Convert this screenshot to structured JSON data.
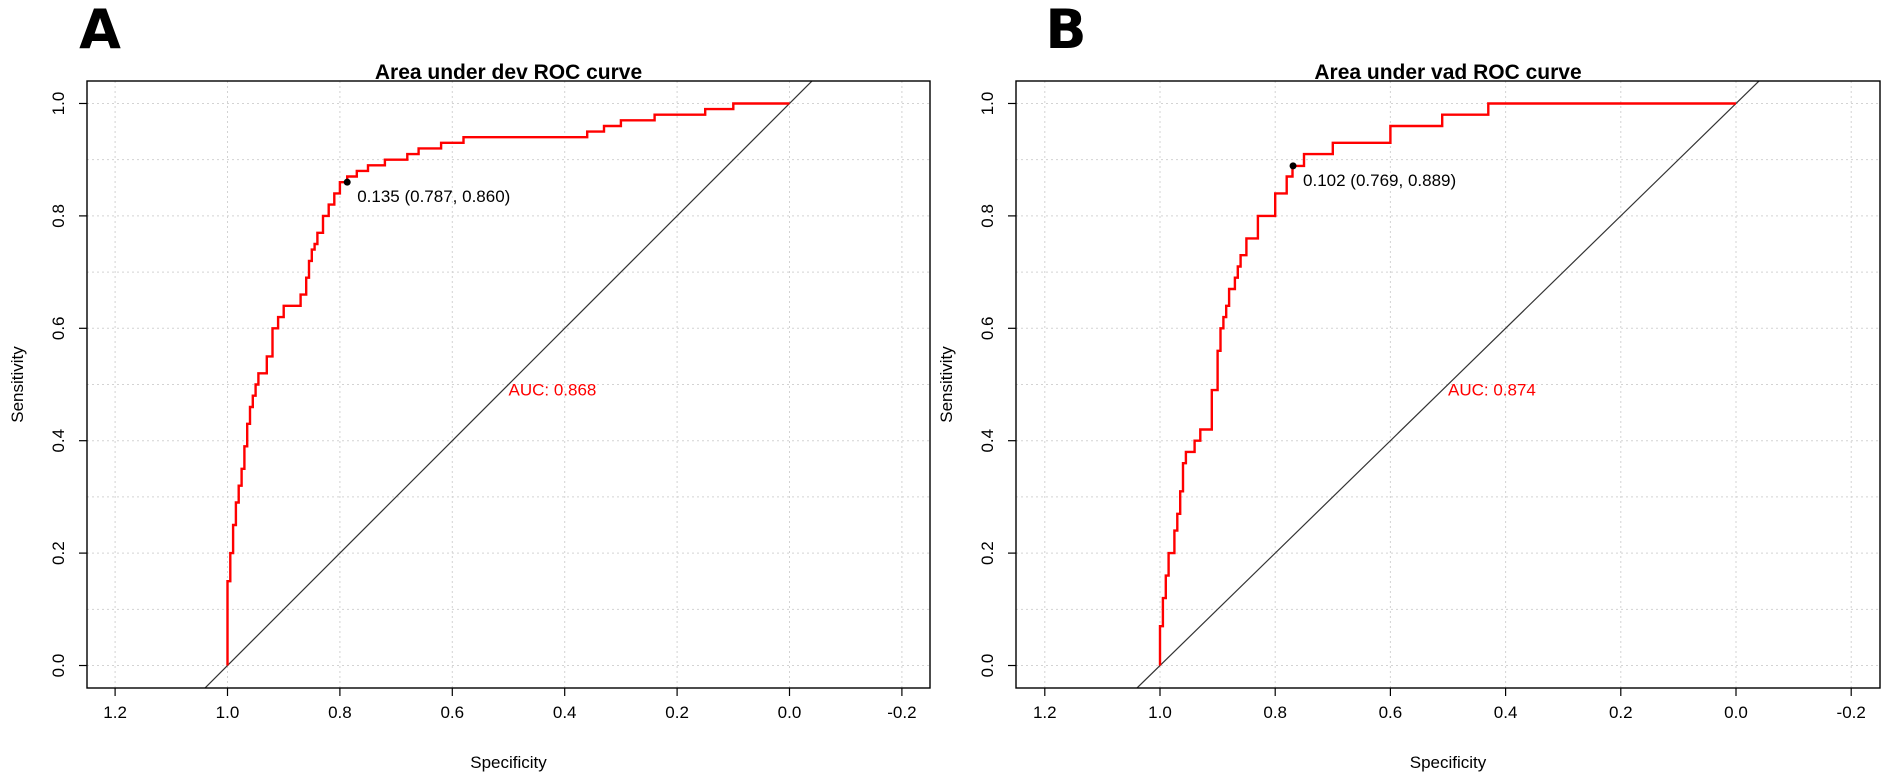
{
  "chart_data": [
    {
      "panel_label": "A",
      "type": "line",
      "title": "Area under dev ROC curve",
      "xlabel": "Specificity",
      "ylabel": "Sensitivity",
      "xlim": [
        1.25,
        -0.25
      ],
      "ylim": [
        -0.04,
        1.04
      ],
      "x_ticks": [
        "1.2",
        "1.0",
        "0.8",
        "0.6",
        "0.4",
        "0.2",
        "0.0",
        "-0.2"
      ],
      "y_ticks": [
        "0.0",
        "0.2",
        "0.4",
        "0.6",
        "0.8",
        "1.0"
      ],
      "grid": true,
      "series": [
        {
          "name": "ROC",
          "color": "#ff0000",
          "specificity": [
            1.0,
            1.0,
            0.995,
            0.995,
            0.99,
            0.99,
            0.985,
            0.985,
            0.98,
            0.98,
            0.975,
            0.975,
            0.97,
            0.97,
            0.965,
            0.965,
            0.96,
            0.96,
            0.955,
            0.955,
            0.95,
            0.95,
            0.945,
            0.945,
            0.94,
            0.94,
            0.93,
            0.93,
            0.92,
            0.92,
            0.91,
            0.91,
            0.9,
            0.9,
            0.89,
            0.89,
            0.87,
            0.87,
            0.86,
            0.86,
            0.855,
            0.855,
            0.85,
            0.85,
            0.845,
            0.845,
            0.84,
            0.84,
            0.83,
            0.83,
            0.82,
            0.82,
            0.81,
            0.81,
            0.8,
            0.8,
            0.787,
            0.787,
            0.77,
            0.77,
            0.75,
            0.75,
            0.72,
            0.72,
            0.68,
            0.68,
            0.66,
            0.66,
            0.62,
            0.62,
            0.58,
            0.58,
            0.5,
            0.5,
            0.36,
            0.36,
            0.33,
            0.33,
            0.3,
            0.3,
            0.24,
            0.24,
            0.15,
            0.15,
            0.1,
            0.1,
            0.0
          ],
          "sensitivity": [
            0.0,
            0.15,
            0.15,
            0.2,
            0.2,
            0.25,
            0.25,
            0.29,
            0.29,
            0.32,
            0.32,
            0.35,
            0.35,
            0.39,
            0.39,
            0.43,
            0.43,
            0.46,
            0.46,
            0.48,
            0.48,
            0.5,
            0.5,
            0.52,
            0.52,
            0.52,
            0.52,
            0.55,
            0.55,
            0.6,
            0.6,
            0.62,
            0.62,
            0.64,
            0.64,
            0.64,
            0.64,
            0.66,
            0.66,
            0.69,
            0.69,
            0.72,
            0.72,
            0.74,
            0.74,
            0.75,
            0.75,
            0.77,
            0.77,
            0.8,
            0.8,
            0.82,
            0.82,
            0.84,
            0.84,
            0.86,
            0.86,
            0.87,
            0.87,
            0.88,
            0.88,
            0.89,
            0.89,
            0.9,
            0.9,
            0.91,
            0.91,
            0.92,
            0.92,
            0.93,
            0.93,
            0.94,
            0.94,
            0.94,
            0.94,
            0.95,
            0.95,
            0.96,
            0.96,
            0.97,
            0.97,
            0.98,
            0.98,
            0.99,
            0.99,
            1.0,
            1.0
          ]
        }
      ],
      "reference_line": {
        "x": [
          1.0,
          0.0
        ],
        "y": [
          0.0,
          1.0
        ],
        "color": "#333333"
      },
      "threshold_point": {
        "x": 0.787,
        "y": 0.86,
        "label": "0.135 (0.787, 0.860)"
      },
      "auc_label": {
        "text": "AUC: 0.868",
        "x": 0.5,
        "y": 0.48,
        "color": "#ff0000"
      }
    },
    {
      "panel_label": "B",
      "type": "line",
      "title": "Area under vad ROC curve",
      "xlabel": "Specificity",
      "ylabel": "Sensitivity",
      "xlim": [
        1.25,
        -0.25
      ],
      "ylim": [
        -0.04,
        1.04
      ],
      "x_ticks": [
        "1.2",
        "1.0",
        "0.8",
        "0.6",
        "0.4",
        "0.2",
        "0.0",
        "-0.2"
      ],
      "y_ticks": [
        "0.0",
        "0.2",
        "0.4",
        "0.6",
        "0.8",
        "1.0"
      ],
      "grid": true,
      "series": [
        {
          "name": "ROC",
          "color": "#ff0000",
          "specificity": [
            1.0,
            1.0,
            0.995,
            0.995,
            0.99,
            0.99,
            0.985,
            0.985,
            0.975,
            0.975,
            0.97,
            0.97,
            0.965,
            0.965,
            0.96,
            0.96,
            0.955,
            0.955,
            0.94,
            0.94,
            0.93,
            0.93,
            0.91,
            0.91,
            0.9,
            0.9,
            0.895,
            0.895,
            0.89,
            0.89,
            0.885,
            0.885,
            0.88,
            0.88,
            0.87,
            0.87,
            0.865,
            0.865,
            0.86,
            0.86,
            0.85,
            0.85,
            0.845,
            0.845,
            0.84,
            0.84,
            0.83,
            0.83,
            0.8,
            0.8,
            0.78,
            0.78,
            0.77,
            0.77,
            0.75,
            0.75,
            0.7,
            0.7,
            0.6,
            0.6,
            0.51,
            0.51,
            0.43,
            0.43,
            0.0
          ],
          "sensitivity": [
            0.0,
            0.07,
            0.07,
            0.12,
            0.12,
            0.16,
            0.16,
            0.2,
            0.2,
            0.24,
            0.24,
            0.27,
            0.27,
            0.31,
            0.31,
            0.36,
            0.36,
            0.38,
            0.38,
            0.4,
            0.4,
            0.42,
            0.42,
            0.49,
            0.49,
            0.56,
            0.56,
            0.6,
            0.6,
            0.62,
            0.62,
            0.64,
            0.64,
            0.67,
            0.67,
            0.69,
            0.69,
            0.71,
            0.71,
            0.73,
            0.73,
            0.76,
            0.76,
            0.76,
            0.76,
            0.76,
            0.76,
            0.8,
            0.8,
            0.84,
            0.84,
            0.87,
            0.87,
            0.889,
            0.889,
            0.91,
            0.91,
            0.93,
            0.93,
            0.96,
            0.96,
            0.98,
            0.98,
            1.0,
            1.0
          ]
        }
      ],
      "reference_line": {
        "x": [
          1.0,
          0.0
        ],
        "y": [
          0.0,
          1.0
        ],
        "color": "#333333"
      },
      "threshold_point": {
        "x": 0.769,
        "y": 0.889,
        "label": "0.102 (0.769, 0.889)"
      },
      "auc_label": {
        "text": "AUC: 0.874",
        "x": 0.5,
        "y": 0.48,
        "color": "#ff0000"
      }
    }
  ]
}
